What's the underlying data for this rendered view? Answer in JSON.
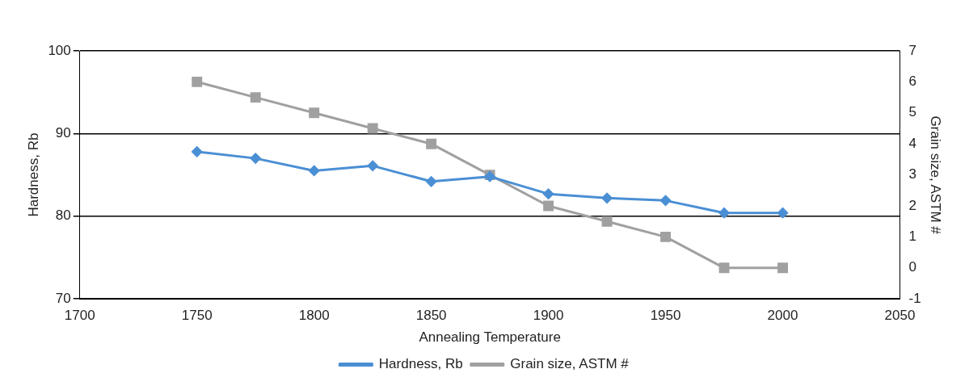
{
  "chart_data": {
    "type": "line",
    "xlabel": "Annealing Temperature",
    "ylabel": "Hardness, Rb",
    "y2label": "Grain size, ASTM #",
    "x": [
      1750,
      1775,
      1800,
      1825,
      1850,
      1875,
      1900,
      1925,
      1950,
      1975,
      2000
    ],
    "series": [
      {
        "name": "Hardness, Rb",
        "color": "#4a8fd4",
        "marker": "diamond",
        "values": [
          87.8,
          87.0,
          85.5,
          86.1,
          84.2,
          84.8,
          82.7,
          82.2,
          81.9,
          80.4,
          80.4
        ]
      },
      {
        "name": "Grain size, ASTM #",
        "color": "#a0a0a0",
        "marker": "square",
        "axis": "y2",
        "values": [
          6,
          5.5,
          5,
          4.5,
          4,
          3,
          2,
          1.5,
          1,
          0,
          0
        ]
      }
    ],
    "xlim": [
      1700,
      2050
    ],
    "xticks": [
      1700,
      1750,
      1800,
      1850,
      1900,
      1950,
      2000,
      2050
    ],
    "ylim": [
      70,
      100
    ],
    "yticks": [
      70,
      80,
      90,
      100
    ],
    "y2lim": [
      -1,
      7
    ],
    "y2ticks": [
      -1,
      0,
      1,
      2,
      3,
      4,
      5,
      6,
      7
    ],
    "grid": "y",
    "legend": "bottom",
    "line_style": "solid"
  }
}
